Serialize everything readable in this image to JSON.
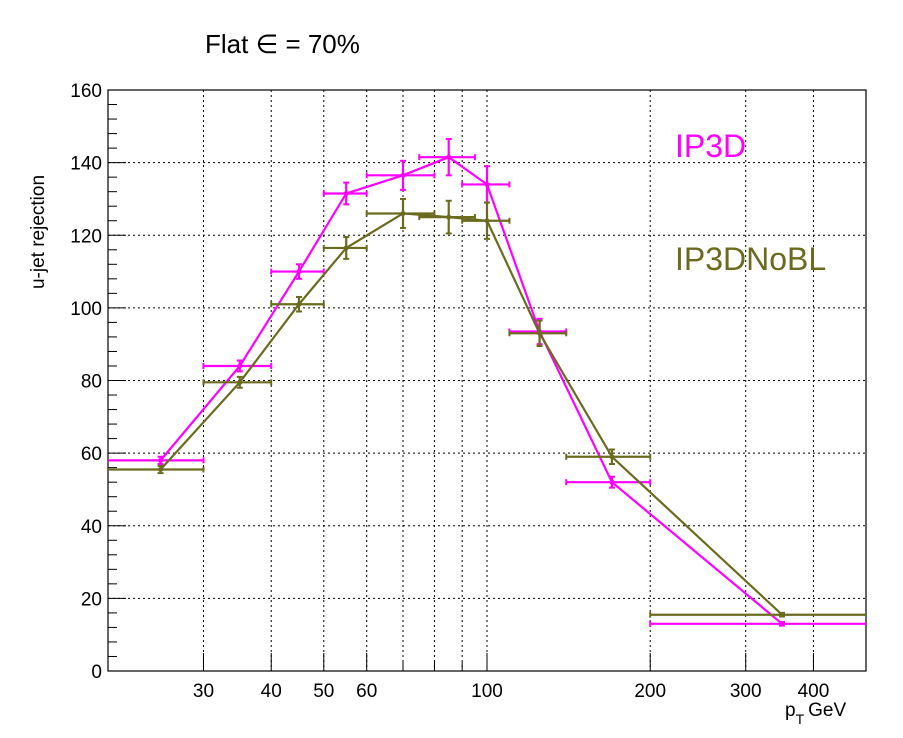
{
  "chart_data": {
    "type": "line",
    "title": "Flat ∈ = 70%",
    "xlabel": "p_T GeV",
    "xlabel_main": "p",
    "xlabel_sub": "T",
    "xlabel_unit": "GeV",
    "ylabel": "u-jet rejection",
    "x_scale": "log",
    "xlim": [
      20,
      500
    ],
    "ylim": [
      0,
      160
    ],
    "x_ticks": [
      30,
      40,
      50,
      60,
      100,
      200,
      300,
      400
    ],
    "y_ticks": [
      0,
      20,
      40,
      60,
      80,
      100,
      120,
      140,
      160
    ],
    "grid": true,
    "legend": "inline-right",
    "series": [
      {
        "name": "IP3D",
        "color": "#ff00ff",
        "points": [
          {
            "x": 25,
            "xlo": 20,
            "xhi": 30,
            "y": 58,
            "yerr": 1
          },
          {
            "x": 35,
            "xlo": 30,
            "xhi": 40,
            "y": 84,
            "yerr": 1.5
          },
          {
            "x": 45,
            "xlo": 40,
            "xhi": 50,
            "y": 110,
            "yerr": 2
          },
          {
            "x": 55,
            "xlo": 50,
            "xhi": 60,
            "y": 131.5,
            "yerr": 3
          },
          {
            "x": 70,
            "xlo": 60,
            "xhi": 80,
            "y": 136.5,
            "yerr": 4
          },
          {
            "x": 85,
            "xlo": 75,
            "xhi": 95,
            "y": 141.5,
            "yerr": 5
          },
          {
            "x": 100,
            "xlo": 90,
            "xhi": 110,
            "y": 134,
            "yerr": 5
          },
          {
            "x": 125,
            "xlo": 110,
            "xhi": 140,
            "y": 93.5,
            "yerr": 3.5
          },
          {
            "x": 170,
            "xlo": 140,
            "xhi": 200,
            "y": 52,
            "yerr": 1.5
          },
          {
            "x": 350,
            "xlo": 200,
            "xhi": 500,
            "y": 13,
            "yerr": 0.5
          }
        ]
      },
      {
        "name": "IP3DNoBL",
        "color": "#6b6b1f",
        "points": [
          {
            "x": 25,
            "xlo": 20,
            "xhi": 30,
            "y": 55.5,
            "yerr": 1
          },
          {
            "x": 35,
            "xlo": 30,
            "xhi": 40,
            "y": 79.5,
            "yerr": 1.5
          },
          {
            "x": 45,
            "xlo": 40,
            "xhi": 50,
            "y": 101,
            "yerr": 2
          },
          {
            "x": 55,
            "xlo": 50,
            "xhi": 60,
            "y": 116.5,
            "yerr": 3
          },
          {
            "x": 70,
            "xlo": 60,
            "xhi": 80,
            "y": 126,
            "yerr": 4
          },
          {
            "x": 85,
            "xlo": 75,
            "xhi": 95,
            "y": 125,
            "yerr": 4.5
          },
          {
            "x": 100,
            "xlo": 90,
            "xhi": 110,
            "y": 124,
            "yerr": 5
          },
          {
            "x": 125,
            "xlo": 110,
            "xhi": 140,
            "y": 93,
            "yerr": 3.5
          },
          {
            "x": 170,
            "xlo": 140,
            "xhi": 200,
            "y": 59,
            "yerr": 2
          },
          {
            "x": 350,
            "xlo": 200,
            "xhi": 500,
            "y": 15.5,
            "yerr": 0.5
          }
        ]
      }
    ]
  }
}
